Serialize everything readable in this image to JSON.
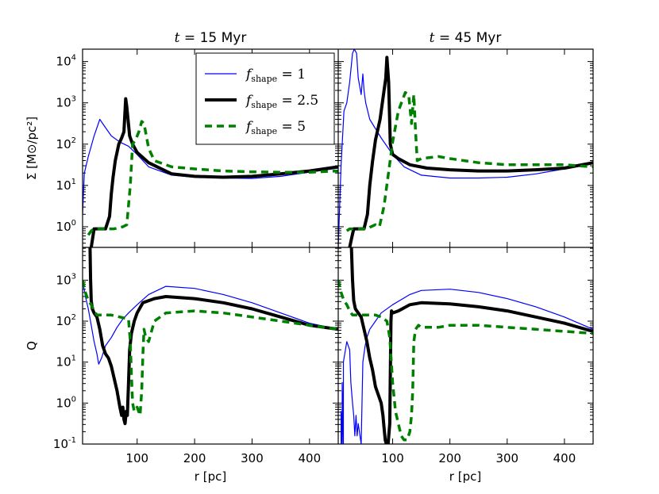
{
  "chart_data": {
    "type": "line",
    "xlabel": "r [pc]",
    "ylabel_top": "Σ [M⊙/pc²]",
    "ylabel_bottom": "Q",
    "xlim": [
      5,
      450
    ],
    "x_ticks": [
      100,
      200,
      300,
      400
    ],
    "ylim_top_log10": [
      -0.5,
      4.3
    ],
    "ylim_bottom_log10": [
      -1,
      3.8
    ],
    "y_ticks_top": [
      {
        "base": "10",
        "exp": "0",
        "log": 0
      },
      {
        "base": "10",
        "exp": "1",
        "log": 1
      },
      {
        "base": "10",
        "exp": "2",
        "log": 2
      },
      {
        "base": "10",
        "exp": "3",
        "log": 3
      },
      {
        "base": "10",
        "exp": "4",
        "log": 4
      }
    ],
    "y_ticks_bottom": [
      {
        "base": "10",
        "exp": "-1",
        "log": -1
      },
      {
        "base": "10",
        "exp": "0",
        "log": 0
      },
      {
        "base": "10",
        "exp": "1",
        "log": 1
      },
      {
        "base": "10",
        "exp": "2",
        "log": 2
      },
      {
        "base": "10",
        "exp": "3",
        "log": 3
      }
    ],
    "columns": [
      {
        "title_var": "t",
        "title_eq": " = ",
        "title_num": "15",
        "title_unit": " Myr"
      },
      {
        "title_var": "t",
        "title_eq": " = ",
        "title_num": "45",
        "title_unit": " Myr"
      }
    ],
    "legend": {
      "placement": "top-right of upper-left panel",
      "entries": [
        {
          "prefix": "f",
          "sub": "shape",
          "suffix": " = 1",
          "color": "#0000ff",
          "style": "thin"
        },
        {
          "prefix": "f",
          "sub": "shape",
          "suffix": " = 2.5",
          "color": "#000000",
          "style": "thick"
        },
        {
          "prefix": "f",
          "sub": "shape",
          "suffix": " = 5",
          "color": "#008000",
          "style": "dashed"
        }
      ]
    },
    "panels": [
      {
        "row": "sigma",
        "col": 0,
        "series": [
          {
            "name": "f_shape=1",
            "color": "#0000ff",
            "width": 1.2,
            "dash": "",
            "x": [
              5,
              8,
              15,
              25,
              35,
              45,
              55,
              70,
              85,
              100,
              120,
              160,
              200,
              250,
              300,
              350,
              400,
              450
            ],
            "y": [
              0.3,
              1.3,
              1.7,
              2.2,
              2.6,
              2.4,
              2.2,
              2.05,
              1.95,
              1.75,
              1.45,
              1.25,
              1.2,
              1.18,
              1.17,
              1.22,
              1.32,
              1.42
            ]
          },
          {
            "name": "f_shape=2.5",
            "color": "#000000",
            "width": 4,
            "dash": "",
            "x": [
              20,
              25,
              28,
              35,
              45,
              52,
              55,
              58,
              62,
              68,
              73,
              77,
              80,
              82,
              84,
              87,
              92,
              100,
              120,
              160,
              200,
              250,
              300,
              350,
              400,
              450
            ],
            "y": [
              -0.5,
              -0.05,
              -0.05,
              -0.05,
              -0.05,
              0.25,
              0.8,
              1.2,
              1.6,
              2.0,
              2.15,
              2.3,
              3.1,
              2.9,
              2.6,
              2.2,
              2.0,
              1.8,
              1.55,
              1.28,
              1.22,
              1.2,
              1.22,
              1.28,
              1.35,
              1.45
            ]
          },
          {
            "name": "f_shape=5",
            "color": "#008000",
            "width": 3.5,
            "dash": "9,6",
            "x": [
              15,
              20,
              25,
              30,
              45,
              60,
              75,
              82,
              88,
              92,
              97,
              103,
              108,
              112,
              120,
              130,
              160,
              200,
              250,
              300,
              350,
              400,
              450
            ],
            "y": [
              -0.2,
              -0.1,
              -0.05,
              -0.05,
              -0.05,
              -0.05,
              0.0,
              0.05,
              1.0,
              2.0,
              2.1,
              2.3,
              2.55,
              2.5,
              1.9,
              1.6,
              1.45,
              1.4,
              1.35,
              1.33,
              1.32,
              1.32,
              1.35
            ]
          }
        ]
      },
      {
        "row": "sigma",
        "col": 1,
        "series": [
          {
            "name": "f_shape=1",
            "color": "#0000ff",
            "width": 1.2,
            "dash": "",
            "x": [
              5,
              10,
              15,
              20,
              25,
              30,
              33,
              37,
              40,
              45,
              48,
              50,
              53,
              60,
              80,
              100,
              120,
              150,
              200,
              250,
              300,
              350,
              400,
              450
            ],
            "y": [
              -0.5,
              1.5,
              2.8,
              3.0,
              3.5,
              4.2,
              4.3,
              4.2,
              3.6,
              3.2,
              3.7,
              3.3,
              3.0,
              2.6,
              2.15,
              1.75,
              1.45,
              1.25,
              1.18,
              1.18,
              1.2,
              1.28,
              1.4,
              1.55
            ]
          },
          {
            "name": "f_shape=2.5",
            "color": "#000000",
            "width": 4,
            "dash": "",
            "x": [
              25,
              28,
              32,
              40,
              50,
              56,
              60,
              65,
              70,
              78,
              85,
              88,
              90,
              93,
              96,
              100,
              110,
              130,
              160,
              200,
              250,
              300,
              350,
              400,
              450
            ],
            "y": [
              -0.5,
              -0.3,
              -0.05,
              -0.05,
              -0.05,
              0.3,
              1.0,
              1.6,
              2.1,
              2.6,
              3.3,
              3.6,
              4.1,
              3.5,
              2.0,
              1.75,
              1.65,
              1.5,
              1.42,
              1.38,
              1.35,
              1.35,
              1.38,
              1.42,
              1.55
            ]
          },
          {
            "name": "f_shape=5",
            "color": "#008000",
            "width": 3.5,
            "dash": "9,6",
            "x": [
              20,
              25,
              35,
              45,
              55,
              62,
              70,
              77,
              85,
              100,
              110,
              118,
              122,
              128,
              133,
              137,
              140,
              143,
              150,
              180,
              200,
              250,
              300,
              350,
              400,
              450
            ],
            "y": [
              -0.1,
              -0.05,
              -0.05,
              -0.05,
              -0.05,
              0.0,
              0.05,
              0.0,
              0.5,
              2.05,
              2.8,
              3.1,
              3.25,
              3.2,
              2.5,
              3.2,
              2.3,
              1.6,
              1.65,
              1.7,
              1.65,
              1.55,
              1.5,
              1.5,
              1.5,
              1.45
            ]
          }
        ]
      },
      {
        "row": "q",
        "col": 0,
        "series": [
          {
            "name": "f_shape=1",
            "color": "#0000ff",
            "width": 1.2,
            "dash": "",
            "x": [
              5,
              10,
              15,
              20,
              25,
              30,
              33,
              38,
              45,
              55,
              65,
              75,
              85,
              100,
              120,
              150,
              200,
              250,
              300,
              350,
              400,
              450
            ],
            "y": [
              3.0,
              2.6,
              2.3,
              1.9,
              1.5,
              1.2,
              0.95,
              1.1,
              1.4,
              1.6,
              1.85,
              2.05,
              2.2,
              2.4,
              2.65,
              2.85,
              2.8,
              2.65,
              2.45,
              2.2,
              1.95,
              1.8
            ]
          },
          {
            "name": "f_shape=2.5",
            "color": "#000000",
            "width": 4,
            "dash": "",
            "x": [
              18,
              19,
              20,
              22,
              25,
              30,
              35,
              40,
              45,
              50,
              55,
              60,
              65,
              70,
              73,
              75,
              77,
              79,
              81,
              83,
              85,
              87,
              90,
              95,
              100,
              110,
              130,
              150,
              200,
              250,
              300,
              350,
              400,
              450
            ],
            "y": [
              3.8,
              3.0,
              2.5,
              2.3,
              2.2,
              2.1,
              1.8,
              1.4,
              1.2,
              1.1,
              0.9,
              0.6,
              0.3,
              -0.1,
              -0.3,
              -0.1,
              -0.4,
              -0.5,
              -0.2,
              -0.3,
              0.5,
              1.3,
              1.7,
              2.0,
              2.2,
              2.45,
              2.55,
              2.6,
              2.55,
              2.45,
              2.3,
              2.1,
              1.9,
              1.8
            ]
          },
          {
            "name": "f_shape=5",
            "color": "#008000",
            "width": 3.5,
            "dash": "9,6",
            "x": [
              5,
              10,
              15,
              20,
              25,
              30,
              35,
              40,
              55,
              70,
              85,
              88,
              90,
              92,
              95,
              100,
              105,
              108,
              110,
              112,
              115,
              120,
              130,
              150,
              200,
              250,
              300,
              350,
              400,
              450
            ],
            "y": [
              3.0,
              2.7,
              2.5,
              2.4,
              2.25,
              2.15,
              2.15,
              2.15,
              2.15,
              2.1,
              2.05,
              1.5,
              0.7,
              0.0,
              -0.2,
              -0.1,
              -0.3,
              0.3,
              1.2,
              1.8,
              1.6,
              1.5,
              2.0,
              2.2,
              2.25,
              2.2,
              2.1,
              2.0,
              1.9,
              1.8
            ]
          }
        ]
      },
      {
        "row": "q",
        "col": 1,
        "series": [
          {
            "name": "f_shape=1",
            "color": "#0000ff",
            "width": 1.2,
            "dash": "",
            "x": [
              10,
              10,
              12,
              12,
              14,
              14,
              20,
              25,
              27,
              30,
              32,
              34,
              36,
              38,
              40,
              45,
              48,
              52,
              55,
              60,
              70,
              80,
              100,
              130,
              150,
              200,
              250,
              300,
              350,
              400,
              450
            ],
            "y": [
              -1.0,
              -0.2,
              -1.0,
              0.5,
              -1.0,
              1.0,
              1.5,
              1.3,
              0.5,
              0.0,
              -0.3,
              -0.8,
              -0.3,
              -0.8,
              -0.5,
              -1.0,
              1.0,
              1.4,
              1.6,
              1.8,
              2.0,
              2.2,
              2.4,
              2.65,
              2.75,
              2.78,
              2.7,
              2.55,
              2.35,
              2.1,
              1.8
            ]
          },
          {
            "name": "f_shape=2.5",
            "color": "#000000",
            "width": 4,
            "dash": "",
            "x": [
              28,
              30,
              32,
              35,
              40,
              45,
              50,
              55,
              60,
              65,
              70,
              75,
              80,
              83,
              85,
              87,
              89,
              92,
              95,
              97,
              98,
              100,
              110,
              130,
              150,
              200,
              250,
              300,
              350,
              400,
              450
            ],
            "y": [
              3.8,
              3.0,
              2.5,
              2.3,
              2.2,
              2.1,
              1.8,
              1.5,
              1.1,
              0.8,
              0.4,
              0.2,
              0.0,
              -0.3,
              -0.6,
              -0.9,
              -1.0,
              -1.0,
              -0.5,
              2.0,
              2.25,
              2.2,
              2.25,
              2.4,
              2.45,
              2.42,
              2.35,
              2.25,
              2.1,
              1.95,
              1.75
            ]
          },
          {
            "name": "f_shape=5",
            "color": "#008000",
            "width": 3.5,
            "dash": "9,6",
            "x": [
              5,
              10,
              15,
              20,
              25,
              30,
              40,
              55,
              70,
              80,
              90,
              95,
              100,
              105,
              110,
              115,
              120,
              125,
              130,
              133,
              135,
              137,
              140,
              145,
              150,
              180,
              200,
              250,
              300,
              350,
              400,
              450
            ],
            "y": [
              3.0,
              2.7,
              2.5,
              2.4,
              2.25,
              2.15,
              2.15,
              2.15,
              2.15,
              2.1,
              2.0,
              1.6,
              0.5,
              -0.2,
              -0.5,
              -0.8,
              -0.9,
              -0.9,
              -0.7,
              -0.3,
              0.3,
              1.5,
              1.8,
              1.9,
              1.85,
              1.85,
              1.9,
              1.9,
              1.85,
              1.8,
              1.75,
              1.7
            ]
          }
        ]
      }
    ]
  }
}
